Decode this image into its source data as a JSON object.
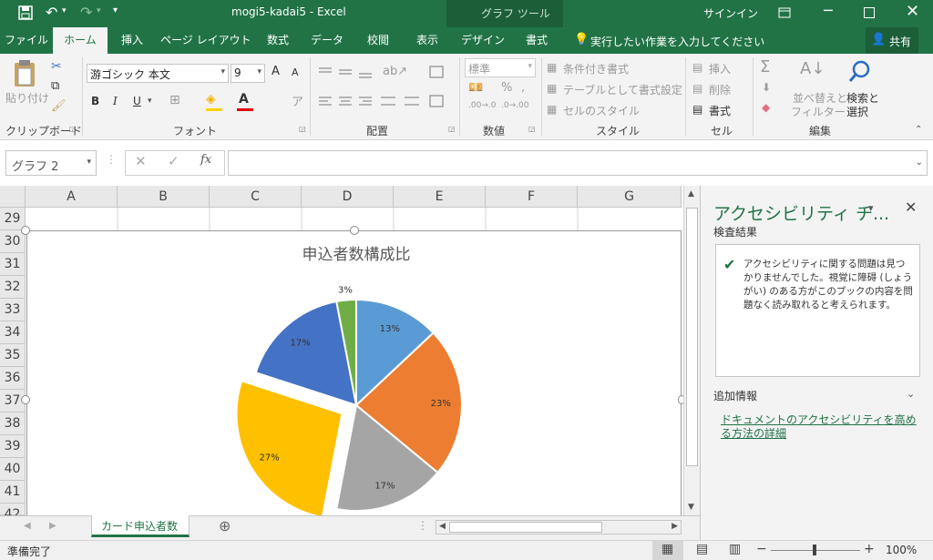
{
  "titlebar": {
    "title": "mogi5-kadai5  -  Excel",
    "tool_context": "グラフ ツール",
    "signin": "サインイン"
  },
  "tabs": [
    "ファイル",
    "ホーム",
    "挿入",
    "ページ レイアウト",
    "数式",
    "データ",
    "校閲",
    "表示",
    "デザイン",
    "書式"
  ],
  "tell_me": "実行したい作業を入力してください",
  "share": "共有",
  "ribbon": {
    "paste": "貼り付け",
    "font_name": "游ゴシック 本文",
    "font_size": "9",
    "bold": "B",
    "italic": "I",
    "underline": "U",
    "grow": "A",
    "shrink": "A",
    "number_format": "標準",
    "percent": "%",
    "conditional": "条件付き書式",
    "table_format": "テーブルとして書式設定",
    "cell_style": "セルのスタイル",
    "insert": "挿入",
    "delete": "削除",
    "format": "書式",
    "sort_filter_1": "並べ替えと",
    "sort_filter_2": "フィルター",
    "find_1": "検索と",
    "find_2": "選択",
    "groups": {
      "clipboard": "クリップボード",
      "font": "フォント",
      "alignment": "配置",
      "number": "数値",
      "styles": "スタイル",
      "cells": "セル",
      "editing": "編集"
    }
  },
  "namebox": "グラフ 2",
  "columns": [
    "A",
    "B",
    "C",
    "D",
    "E",
    "F",
    "G"
  ],
  "rows": [
    "29",
    "30",
    "31",
    "32",
    "33",
    "34",
    "35",
    "36",
    "37",
    "38",
    "39",
    "40",
    "41",
    "42"
  ],
  "chart_data": {
    "type": "pie",
    "title": "申込者数構成比",
    "values": [
      13,
      23,
      17,
      27,
      17,
      3
    ],
    "labels": [
      "13%",
      "23%",
      "17%",
      "27%",
      "17%",
      "3%"
    ],
    "colors": [
      "#5b9bd5",
      "#ed7d31",
      "#a5a5a5",
      "#ffc000",
      "#4472c4",
      "#70ad47"
    ],
    "exploded_index": 3
  },
  "sheet_tab": "カード申込者数",
  "status": {
    "ready": "準備完了",
    "zoom": "100%"
  },
  "pane": {
    "title": "アクセシビリティ チ...",
    "results_heading": "検査結果",
    "message": "アクセシビリティに関する問題は見つかりませんでした。視覚に障碍 (しょうがい) のある方がこのブックの内容を問題なく読み取れると考えられます。",
    "additional": "追加情報",
    "link": "ドキュメントのアクセシビリティを高める方法の詳細"
  }
}
